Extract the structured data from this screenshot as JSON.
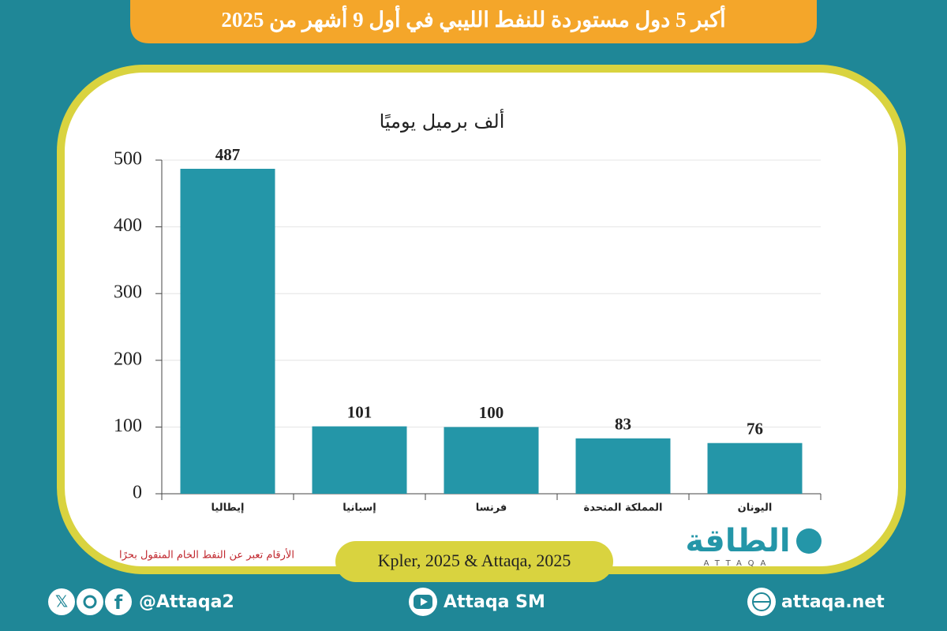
{
  "chart_data": {
    "type": "bar",
    "title": "أكبر 5 دول مستوردة للنفط الليبي في أول 9 أشهر من 2025",
    "subtitle": "ألف برميل يوميًا",
    "categories": [
      "إيطاليا",
      "إسبانيا",
      "فرنسا",
      "المملكة المتحدة",
      "اليونان"
    ],
    "values": [
      487,
      101,
      100,
      83,
      76
    ],
    "color": "#2496a8",
    "ylim": [
      0,
      500
    ],
    "yticks": [
      0,
      100,
      200,
      300,
      400,
      500
    ],
    "grid": true,
    "source": "Kpler, 2025 & Attaqa, 2025",
    "note": "الأرقام تعبر عن النفط الخام المنقول بحرًا"
  },
  "logo": {
    "name": "الطاقة",
    "latin": "ATTAQA"
  },
  "footer": {
    "social": "@Attaqa2",
    "youtube": "Attaqa SM",
    "website": "attaqa.net"
  }
}
